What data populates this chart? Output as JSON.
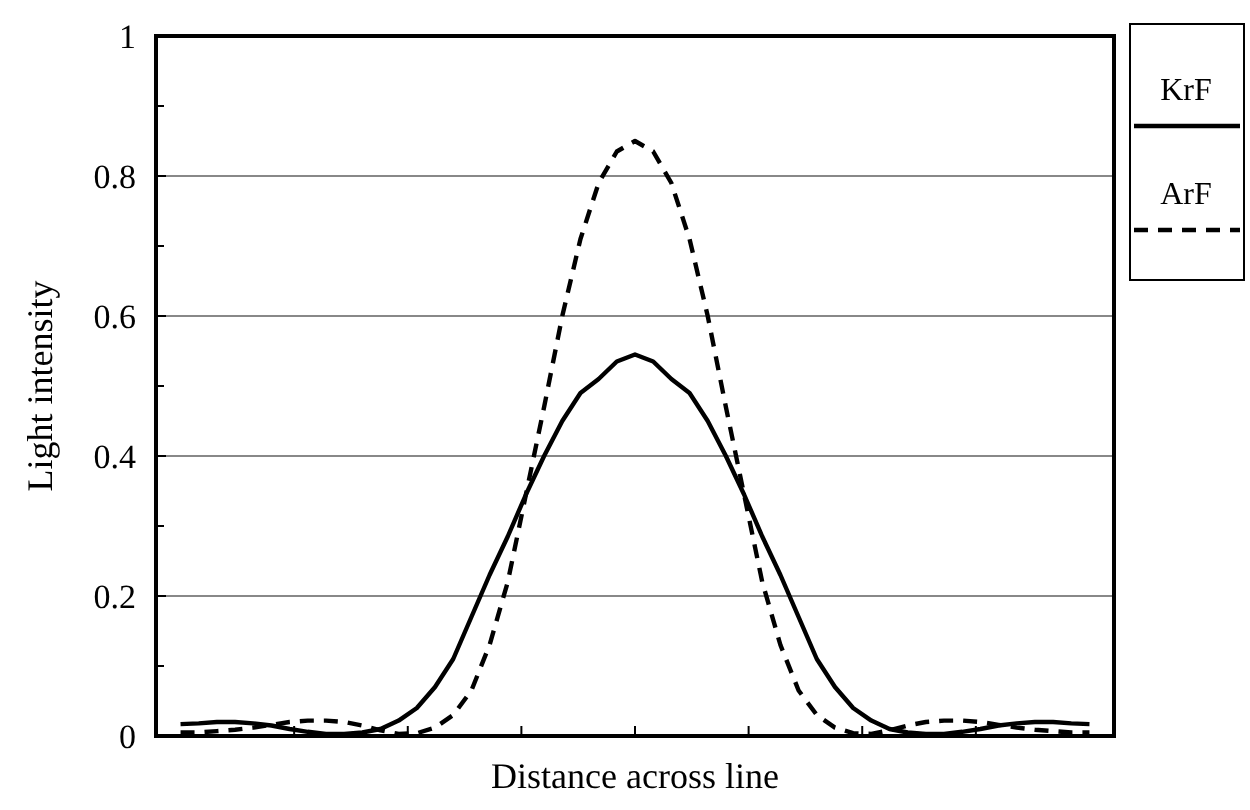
{
  "chart_data": {
    "type": "line",
    "xlabel": "Distance across line",
    "ylabel": "Light intensity",
    "categories": [
      null,
      null,
      null,
      null,
      null,
      null,
      null,
      null,
      null,
      null,
      null,
      null,
      null,
      null,
      null,
      null,
      null,
      null,
      null,
      null,
      null,
      null,
      null,
      null,
      null,
      null,
      null,
      null,
      null,
      null,
      null,
      null,
      null,
      null,
      null,
      null,
      null,
      null,
      null,
      null,
      null,
      null,
      null,
      null,
      null,
      null,
      null,
      null,
      null,
      null,
      null
    ],
    "series": [
      {
        "name": "KrF",
        "color": "#000000",
        "line_style": "solid",
        "values": [
          0.017,
          0.018,
          0.02,
          0.02,
          0.018,
          0.015,
          0.01,
          0.006,
          0.003,
          0.003,
          0.005,
          0.01,
          0.022,
          0.04,
          0.07,
          0.11,
          0.17,
          0.23,
          0.285,
          0.345,
          0.4,
          0.45,
          0.49,
          0.51,
          0.535,
          0.545,
          0.535,
          0.51,
          0.49,
          0.45,
          0.4,
          0.345,
          0.285,
          0.23,
          0.17,
          0.11,
          0.07,
          0.04,
          0.022,
          0.01,
          0.005,
          0.003,
          0.003,
          0.006,
          0.01,
          0.015,
          0.018,
          0.02,
          0.02,
          0.018,
          0.017
        ]
      },
      {
        "name": "ArF",
        "color": "#000000",
        "line_style": "dashed",
        "values": [
          0.005,
          0.005,
          0.007,
          0.009,
          0.012,
          0.016,
          0.02,
          0.022,
          0.022,
          0.02,
          0.015,
          0.008,
          0.003,
          0.004,
          0.012,
          0.03,
          0.065,
          0.13,
          0.22,
          0.345,
          0.47,
          0.6,
          0.71,
          0.79,
          0.835,
          0.85,
          0.835,
          0.79,
          0.71,
          0.6,
          0.47,
          0.345,
          0.22,
          0.13,
          0.065,
          0.03,
          0.012,
          0.004,
          0.003,
          0.008,
          0.015,
          0.02,
          0.022,
          0.022,
          0.02,
          0.016,
          0.012,
          0.009,
          0.007,
          0.005,
          0.005
        ]
      }
    ],
    "ylim": [
      0,
      1
    ],
    "yticks": [
      0,
      0.2,
      0.4,
      0.6,
      0.8,
      1
    ],
    "grid": "y",
    "legend": "top right",
    "marker": "none"
  }
}
